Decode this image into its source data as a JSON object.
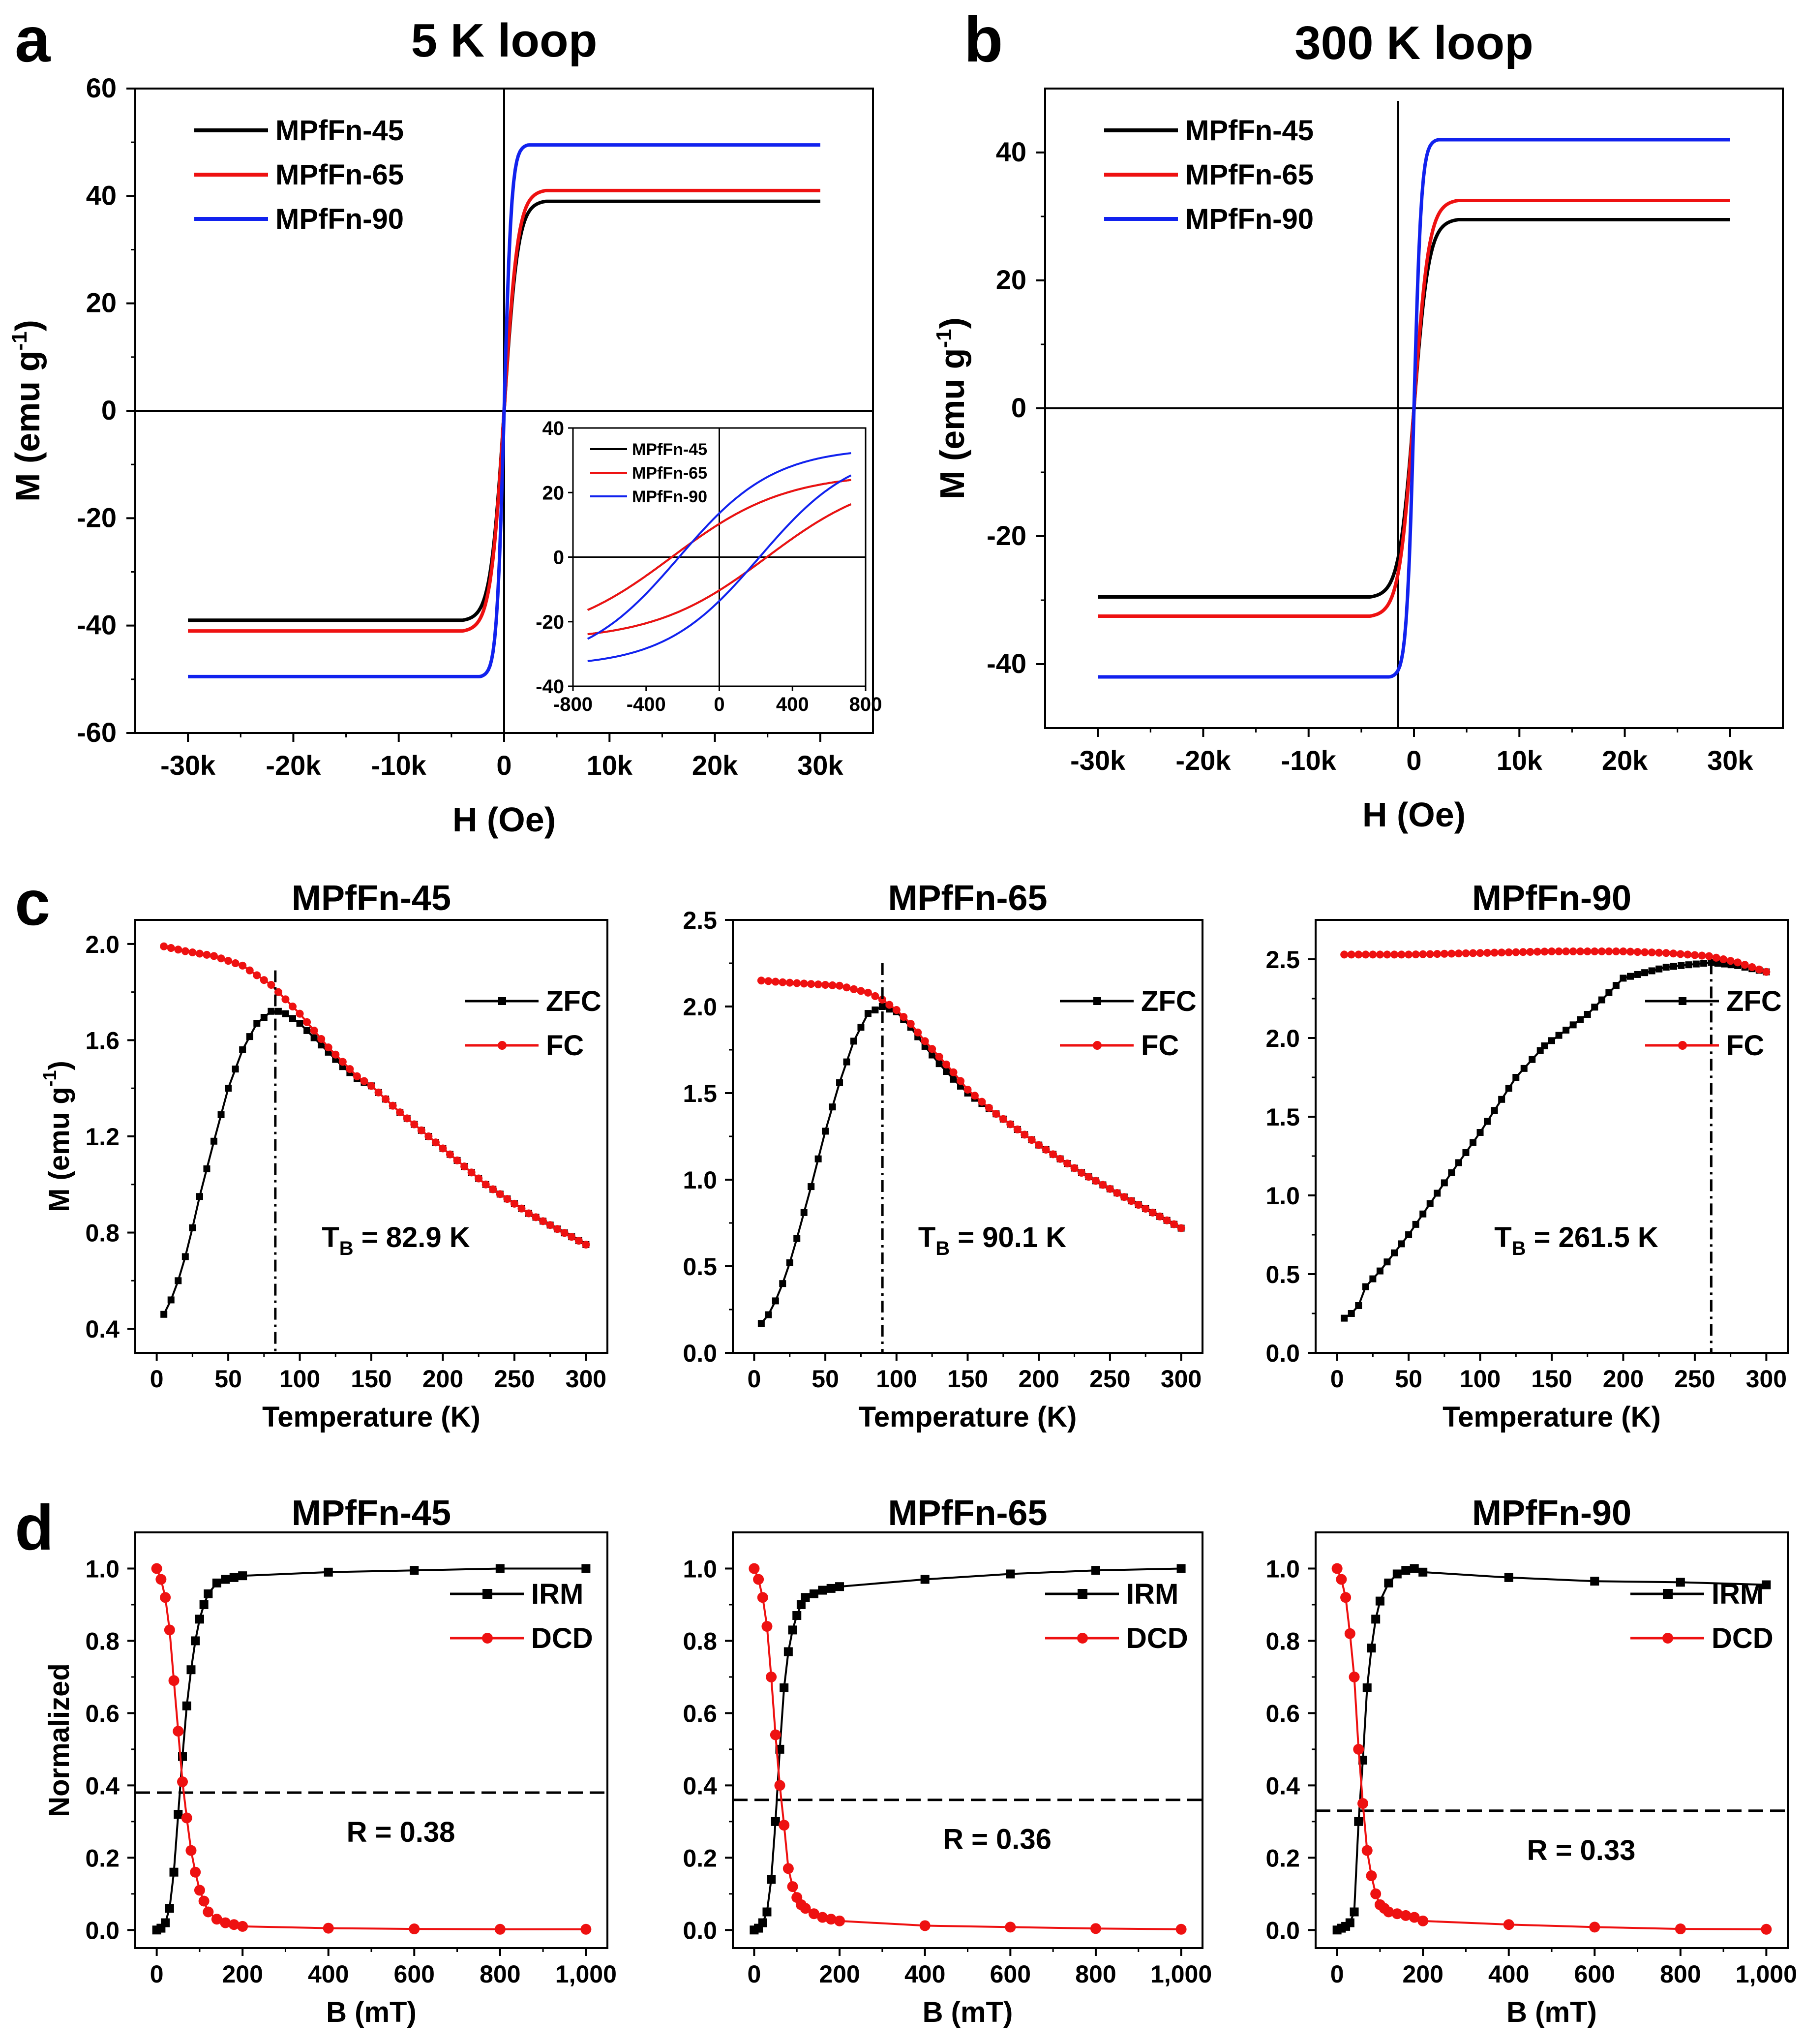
{
  "panel_labels": [
    "a",
    "b",
    "c",
    "d"
  ],
  "chart_data": [
    {
      "id": "a",
      "type": "line",
      "title": "5 K loop",
      "xlabel": "H (Oe)",
      "ylabel": "M (emu g",
      "ylabel_sup": "-1",
      "ylabel_end": ")",
      "xlim": [
        -35000,
        35000
      ],
      "ylim": [
        -60,
        60
      ],
      "xticks": [
        -30000,
        -20000,
        -10000,
        0,
        10000,
        20000,
        30000
      ],
      "xtick_labels": [
        "-30k",
        "-20k",
        "-10k",
        "0",
        "10k",
        "20k",
        "30k"
      ],
      "yticks": [
        -60,
        -40,
        -20,
        0,
        20,
        40,
        60
      ],
      "ytick_labels": [
        "-60",
        "-40",
        "-20",
        "0",
        "20",
        "40",
        "60"
      ],
      "legend": [
        "MPfFn-45",
        "MPfFn-65",
        "MPfFn-90"
      ],
      "series": [
        {
          "name": "MPfFn-45",
          "color": "#000000",
          "ms": 39,
          "k": 1300,
          "hc": 260
        },
        {
          "name": "MPfFn-65",
          "color": "#ee1111",
          "ms": 41,
          "k": 1300,
          "hc": 260
        },
        {
          "name": "MPfFn-90",
          "color": "#1122ee",
          "ms": 49.5,
          "k": 700,
          "hc": 220
        }
      ],
      "inset": {
        "xlim": [
          -800,
          800
        ],
        "ylim": [
          -40,
          40
        ],
        "xticks": [
          -800,
          -400,
          0,
          400,
          800
        ],
        "xtick_labels": [
          "-800",
          "-400",
          "0",
          "400",
          "800"
        ],
        "yticks": [
          -40,
          -20,
          0,
          20,
          40
        ],
        "ytick_labels": [
          "-40",
          "-20",
          "0",
          "20",
          "40"
        ],
        "legend": [
          "MPfFn-45",
          "MPfFn-65",
          "MPfFn-90"
        ]
      }
    },
    {
      "id": "b",
      "type": "line",
      "title": "300 K loop",
      "xlabel": "H (Oe)",
      "ylabel": "M (emu g",
      "ylabel_sup": "-1",
      "ylabel_end": ")",
      "xlim": [
        -35000,
        35000
      ],
      "ylim": [
        -50,
        50
      ],
      "xticks": [
        -30000,
        -20000,
        -10000,
        0,
        10000,
        20000,
        30000
      ],
      "xtick_labels": [
        "-30k",
        "-20k",
        "-10k",
        "0",
        "10k",
        "20k",
        "30k"
      ],
      "yticks": [
        -40,
        -20,
        0,
        20,
        40
      ],
      "ytick_labels": [
        "-40",
        "-20",
        "0",
        "20",
        "40"
      ],
      "legend": [
        "MPfFn-45",
        "MPfFn-65",
        "MPfFn-90"
      ],
      "series": [
        {
          "name": "MPfFn-45",
          "color": "#000000",
          "ms": 29.5,
          "k": 1400
        },
        {
          "name": "MPfFn-65",
          "color": "#ee1111",
          "ms": 32.5,
          "k": 1400
        },
        {
          "name": "MPfFn-90",
          "color": "#1122ee",
          "ms": 42,
          "k": 700
        }
      ]
    },
    {
      "id": "c1",
      "type": "line",
      "title": "MPfFn-45",
      "xlabel": "Temperature (K)",
      "ylabel": "M (emu g",
      "ylabel_sup": "-1",
      "ylabel_end": ")",
      "xlim": [
        -15,
        315
      ],
      "ylim": [
        0.3,
        2.1
      ],
      "xticks": [
        0,
        50,
        100,
        150,
        200,
        250,
        300
      ],
      "xtick_labels": [
        "0",
        "50",
        "100",
        "150",
        "200",
        "250",
        "300"
      ],
      "yticks": [
        0.4,
        0.8,
        1.2,
        1.6,
        2.0
      ],
      "ytick_labels": [
        "0.4",
        "0.8",
        "1.2",
        "1.6",
        "2.0"
      ],
      "legend": [
        "ZFC",
        "FC"
      ],
      "annotation": "T",
      "annotation_sub": "B",
      "annotation_value": " = 82.9 K",
      "tb": 82.9,
      "zfc": {
        "x": [
          5,
          10,
          15,
          20,
          25,
          30,
          40,
          50,
          60,
          70,
          80,
          85,
          90,
          100,
          110,
          120,
          130,
          140,
          150,
          170,
          200,
          230,
          260,
          300
        ],
        "y": [
          0.46,
          0.52,
          0.6,
          0.7,
          0.82,
          0.95,
          1.18,
          1.4,
          1.56,
          1.67,
          1.72,
          1.72,
          1.71,
          1.67,
          1.61,
          1.55,
          1.49,
          1.44,
          1.41,
          1.3,
          1.15,
          1.0,
          0.88,
          0.75
        ]
      },
      "fc": {
        "x": [
          5,
          20,
          40,
          60,
          80,
          100,
          120,
          140,
          150,
          170,
          200,
          230,
          260,
          300
        ],
        "y": [
          1.99,
          1.97,
          1.95,
          1.91,
          1.83,
          1.71,
          1.57,
          1.45,
          1.41,
          1.3,
          1.15,
          1.0,
          0.88,
          0.75
        ]
      }
    },
    {
      "id": "c2",
      "type": "line",
      "title": "MPfFn-65",
      "xlabel": "Temperature (K)",
      "ylabel": "",
      "xlim": [
        -15,
        315
      ],
      "ylim": [
        0.0,
        2.5
      ],
      "xticks": [
        0,
        50,
        100,
        150,
        200,
        250,
        300
      ],
      "xtick_labels": [
        "0",
        "50",
        "100",
        "150",
        "200",
        "250",
        "300"
      ],
      "yticks": [
        0.0,
        0.5,
        1.0,
        1.5,
        2.0,
        2.5
      ],
      "ytick_labels": [
        "0.0",
        "0.5",
        "1.0",
        "1.5",
        "2.0",
        "2.5"
      ],
      "legend": [
        "ZFC",
        "FC"
      ],
      "annotation": "T",
      "annotation_sub": "B",
      "annotation_value": " = 90.1 K",
      "tb": 90.1,
      "zfc": {
        "x": [
          5,
          10,
          15,
          20,
          25,
          30,
          40,
          50,
          60,
          70,
          80,
          90,
          100,
          110,
          120,
          130,
          140,
          150,
          170,
          200,
          230,
          260,
          300
        ],
        "y": [
          0.17,
          0.22,
          0.3,
          0.4,
          0.52,
          0.66,
          0.96,
          1.28,
          1.56,
          1.8,
          1.96,
          2.0,
          1.97,
          1.88,
          1.77,
          1.67,
          1.58,
          1.5,
          1.38,
          1.2,
          1.04,
          0.9,
          0.72
        ]
      },
      "fc": {
        "x": [
          5,
          20,
          40,
          60,
          80,
          90,
          100,
          110,
          120,
          140,
          150,
          170,
          200,
          230,
          260,
          300
        ],
        "y": [
          2.15,
          2.14,
          2.13,
          2.12,
          2.08,
          2.04,
          1.98,
          1.9,
          1.8,
          1.62,
          1.52,
          1.38,
          1.2,
          1.04,
          0.9,
          0.72
        ]
      }
    },
    {
      "id": "c3",
      "type": "line",
      "title": "MPfFn-90",
      "xlabel": "Temperature (K)",
      "ylabel": "",
      "xlim": [
        -15,
        315
      ],
      "ylim": [
        0.0,
        2.75
      ],
      "xticks": [
        0,
        50,
        100,
        150,
        200,
        250,
        300
      ],
      "xtick_labels": [
        "0",
        "50",
        "100",
        "150",
        "200",
        "250",
        "300"
      ],
      "yticks": [
        0.0,
        0.5,
        1.0,
        1.5,
        2.0,
        2.5
      ],
      "ytick_labels": [
        "0.0",
        "0.5",
        "1.0",
        "1.5",
        "2.0",
        "2.5"
      ],
      "legend": [
        "ZFC",
        "FC"
      ],
      "annotation": "T",
      "annotation_sub": "B",
      "annotation_value": " = 261.5 K",
      "tb": 261.5,
      "zfc": {
        "x": [
          5,
          10,
          15,
          20,
          30,
          50,
          75,
          100,
          125,
          142,
          145,
          175,
          200,
          230,
          261.5,
          280,
          300
        ],
        "y": [
          0.22,
          0.25,
          0.3,
          0.42,
          0.52,
          0.75,
          1.08,
          1.4,
          1.75,
          1.92,
          1.95,
          2.15,
          2.38,
          2.45,
          2.48,
          2.46,
          2.42
        ]
      },
      "fc": {
        "x": [
          5,
          50,
          100,
          150,
          200,
          230,
          260,
          280,
          300
        ],
        "y": [
          2.53,
          2.53,
          2.54,
          2.55,
          2.55,
          2.54,
          2.52,
          2.48,
          2.42
        ]
      }
    },
    {
      "id": "d1",
      "type": "line",
      "title": "MPfFn-45",
      "xlabel": "B (mT)",
      "ylabel": "Normalized",
      "xlim": [
        -50,
        1050
      ],
      "ylim": [
        -0.05,
        1.1
      ],
      "xticks": [
        0,
        200,
        400,
        600,
        800,
        1000
      ],
      "xtick_labels": [
        "0",
        "200",
        "400",
        "600",
        "800",
        "1,000"
      ],
      "yticks": [
        0.0,
        0.2,
        0.4,
        0.6,
        0.8,
        1.0
      ],
      "ytick_labels": [
        "0.0",
        "0.2",
        "0.4",
        "0.6",
        "0.8",
        "1.0"
      ],
      "legend": [
        "IRM",
        "DCD"
      ],
      "annotation": "R = 0.38",
      "r": 0.38,
      "irm": {
        "x": [
          0,
          10,
          20,
          30,
          40,
          50,
          60,
          70,
          80,
          90,
          100,
          110,
          120,
          140,
          160,
          180,
          200,
          400,
          600,
          800,
          1000
        ],
        "y": [
          0.0,
          0.005,
          0.02,
          0.06,
          0.16,
          0.32,
          0.48,
          0.62,
          0.72,
          0.8,
          0.86,
          0.9,
          0.93,
          0.96,
          0.97,
          0.975,
          0.98,
          0.99,
          0.995,
          1.0,
          1.0
        ]
      },
      "dcd": {
        "x": [
          0,
          10,
          20,
          30,
          40,
          50,
          60,
          70,
          80,
          90,
          100,
          110,
          120,
          140,
          160,
          180,
          200,
          400,
          600,
          800,
          1000
        ],
        "y": [
          1.0,
          0.97,
          0.92,
          0.83,
          0.69,
          0.55,
          0.41,
          0.31,
          0.22,
          0.16,
          0.11,
          0.08,
          0.05,
          0.03,
          0.02,
          0.015,
          0.01,
          0.005,
          0.003,
          0.002,
          0.002
        ]
      }
    },
    {
      "id": "d2",
      "type": "line",
      "title": "MPfFn-65",
      "xlabel": "B (mT)",
      "ylabel": "",
      "xlim": [
        -50,
        1050
      ],
      "ylim": [
        -0.05,
        1.1
      ],
      "xticks": [
        0,
        200,
        400,
        600,
        800,
        1000
      ],
      "xtick_labels": [
        "0",
        "200",
        "400",
        "600",
        "800",
        "1,000"
      ],
      "yticks": [
        0.0,
        0.2,
        0.4,
        0.6,
        0.8,
        1.0
      ],
      "ytick_labels": [
        "0.0",
        "0.2",
        "0.4",
        "0.6",
        "0.8",
        "1.0"
      ],
      "legend": [
        "IRM",
        "DCD"
      ],
      "annotation": "R = 0.36",
      "r": 0.36,
      "irm": {
        "x": [
          0,
          10,
          20,
          30,
          40,
          50,
          60,
          70,
          80,
          90,
          100,
          110,
          120,
          140,
          160,
          180,
          200,
          400,
          600,
          800,
          1000
        ],
        "y": [
          0.0,
          0.005,
          0.02,
          0.05,
          0.14,
          0.3,
          0.5,
          0.67,
          0.77,
          0.83,
          0.87,
          0.9,
          0.92,
          0.93,
          0.94,
          0.945,
          0.95,
          0.97,
          0.985,
          0.995,
          1.0
        ]
      },
      "dcd": {
        "x": [
          0,
          10,
          20,
          30,
          40,
          50,
          60,
          70,
          80,
          90,
          100,
          110,
          120,
          140,
          160,
          180,
          200,
          400,
          600,
          800,
          1000
        ],
        "y": [
          1.0,
          0.97,
          0.92,
          0.84,
          0.7,
          0.54,
          0.4,
          0.29,
          0.17,
          0.12,
          0.09,
          0.07,
          0.06,
          0.045,
          0.035,
          0.03,
          0.025,
          0.012,
          0.008,
          0.004,
          0.002
        ]
      }
    },
    {
      "id": "d3",
      "type": "line",
      "title": "MPfFn-90",
      "xlabel": "B (mT)",
      "ylabel": "",
      "xlim": [
        -50,
        1050
      ],
      "ylim": [
        -0.05,
        1.1
      ],
      "xticks": [
        0,
        200,
        400,
        600,
        800,
        1000
      ],
      "xtick_labels": [
        "0",
        "200",
        "400",
        "600",
        "800",
        "1,000"
      ],
      "yticks": [
        0.0,
        0.2,
        0.4,
        0.6,
        0.8,
        1.0
      ],
      "ytick_labels": [
        "0.0",
        "0.2",
        "0.4",
        "0.6",
        "0.8",
        "1.0"
      ],
      "legend": [
        "IRM",
        "DCD"
      ],
      "annotation": "R = 0.33",
      "r": 0.33,
      "irm": {
        "x": [
          0,
          10,
          20,
          30,
          40,
          50,
          60,
          70,
          80,
          90,
          100,
          120,
          140,
          160,
          180,
          200,
          400,
          600,
          800,
          1000
        ],
        "y": [
          0.0,
          0.005,
          0.01,
          0.02,
          0.05,
          0.3,
          0.47,
          0.67,
          0.78,
          0.86,
          0.91,
          0.96,
          0.985,
          0.995,
          1.0,
          0.99,
          0.975,
          0.965,
          0.962,
          0.955
        ]
      },
      "dcd": {
        "x": [
          0,
          10,
          20,
          30,
          40,
          50,
          60,
          70,
          80,
          90,
          100,
          110,
          120,
          140,
          160,
          180,
          200,
          400,
          600,
          800,
          1000
        ],
        "y": [
          1.0,
          0.97,
          0.92,
          0.82,
          0.7,
          0.5,
          0.35,
          0.22,
          0.15,
          0.1,
          0.07,
          0.06,
          0.05,
          0.045,
          0.04,
          0.035,
          0.025,
          0.015,
          0.008,
          0.003,
          0.002
        ]
      }
    }
  ]
}
